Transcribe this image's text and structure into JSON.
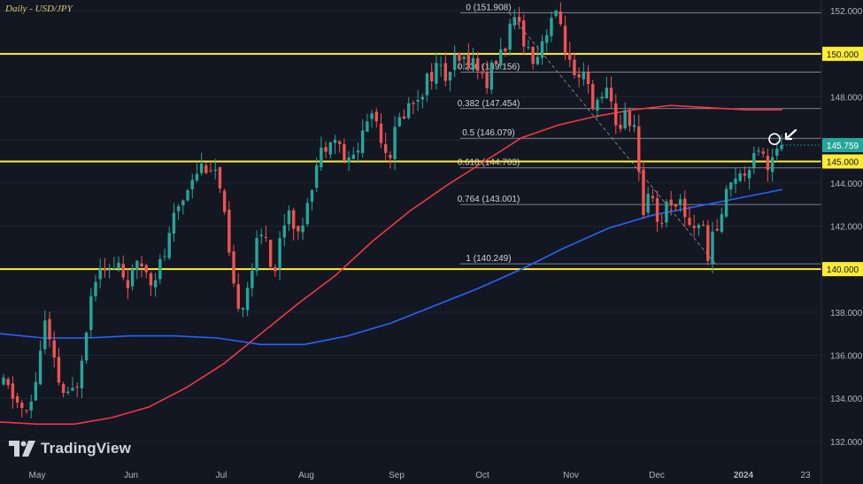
{
  "chart_title": "Daily - USD/JPY",
  "logo_text": "TradingView",
  "colors": {
    "background": "#131722",
    "up": "#26a69a",
    "down": "#ef5350",
    "ma_red": "#f23645",
    "ma_blue": "#2962ff",
    "highlight": "#ffeb3b",
    "fib": "#d1d4dc",
    "current": "#26a69a"
  },
  "chart_data": {
    "type": "candlestick",
    "symbol": "USD/JPY",
    "timeframe": "Daily",
    "x_ticks": [
      "May",
      "Jun",
      "Jul",
      "Aug",
      "Sep",
      "Oct",
      "Nov",
      "Dec",
      "2024",
      "23"
    ],
    "y_ticks": [
      132.0,
      134.0,
      136.0,
      138.0,
      140.0,
      142.0,
      144.0,
      146.0,
      148.0,
      150.0,
      152.0
    ],
    "ylim": [
      130.8,
      152.5
    ],
    "key_levels": [
      150.0,
      145.0,
      140.0
    ],
    "current_price": 145.759,
    "fib_levels": [
      {
        "label": "0 (151.908)",
        "value": 151.908
      },
      {
        "label": "0.236 (149.156)",
        "value": 149.156
      },
      {
        "label": "0.382 (147.454)",
        "value": 147.454
      },
      {
        "label": "0.5 (146.079)",
        "value": 146.079
      },
      {
        "label": "0.618 (144.703)",
        "value": 144.703
      },
      {
        "label": "0.764 (143.001)",
        "value": 143.001
      },
      {
        "label": "1 (140.249)",
        "value": 140.249
      }
    ],
    "price_path": [
      134.6,
      134.2,
      133.6,
      133.1,
      135.0,
      137.6,
      135.8,
      134.4,
      133.9,
      134.8,
      137.2,
      139.5,
      140.6,
      139.8,
      140.2,
      139.4,
      139.8,
      140.3,
      139.6,
      140.1,
      141.0,
      142.6,
      143.4,
      144.4,
      144.8,
      144.9,
      144.5,
      142.2,
      139.0,
      138.3,
      139.5,
      141.2,
      141.8,
      139.6,
      142.0,
      143.0,
      141.3,
      143.2,
      144.6,
      145.6,
      146.4,
      145.7,
      144.8,
      145.4,
      146.5,
      147.4,
      146.4,
      145.2,
      146.6,
      147.4,
      147.8,
      148.3,
      149.0,
      149.4,
      148.9,
      149.5,
      149.6,
      149.8,
      149.3,
      148.7,
      149.6,
      150.2,
      151.2,
      151.4,
      150.2,
      149.8,
      150.9,
      151.8,
      151.4,
      149.6,
      148.3,
      149.0,
      147.2,
      148.4,
      147.9,
      146.5,
      147.1,
      146.7,
      142.4,
      144.2,
      141.8,
      143.1,
      143.3,
      142.8,
      141.9,
      142.3,
      140.8,
      141.8,
      143.0,
      144.6,
      144.2,
      144.9,
      146.0,
      144.9,
      145.1,
      145.759
    ],
    "ma_red_path": [
      132.9,
      132.8,
      132.8,
      133.1,
      133.6,
      134.5,
      135.6,
      137.0,
      138.4,
      139.7,
      141.3,
      142.7,
      143.9,
      145.0,
      146.1,
      146.7,
      147.1,
      147.4,
      147.6,
      147.5,
      147.4,
      147.4
    ],
    "ma_blue_path": [
      137.0,
      136.8,
      136.8,
      136.9,
      136.9,
      136.8,
      136.5,
      136.5,
      136.9,
      137.5,
      138.3,
      139.1,
      140.0,
      141.0,
      141.9,
      142.5,
      142.9,
      143.3,
      143.7
    ]
  }
}
